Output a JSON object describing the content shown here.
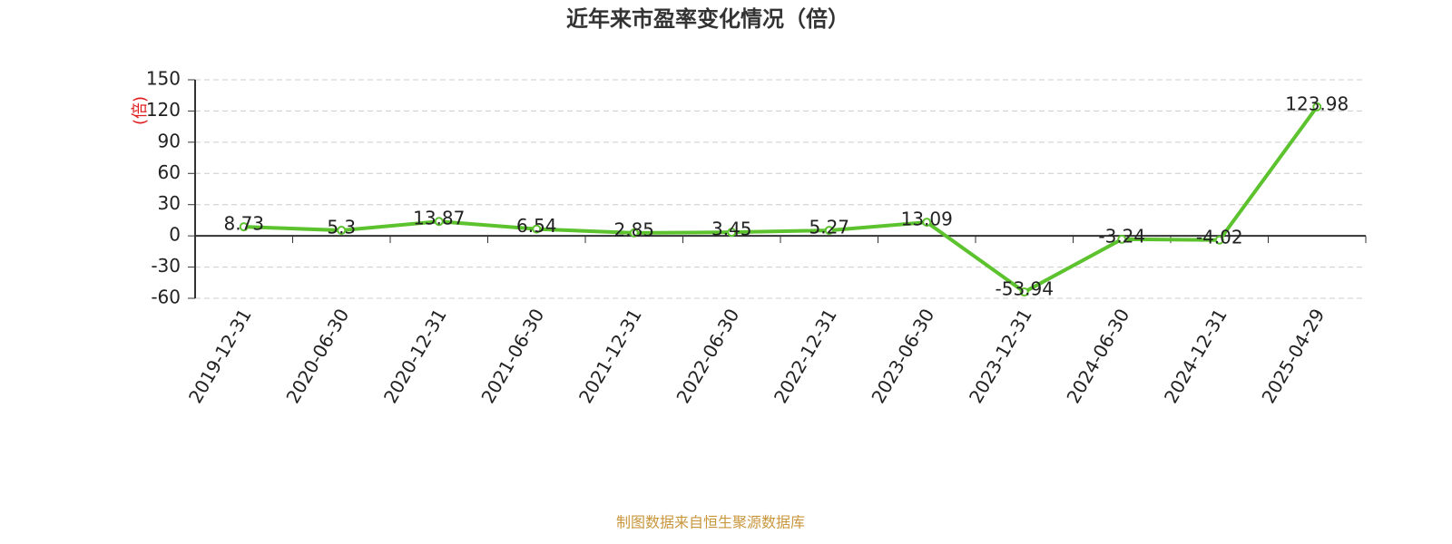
{
  "chart_data": {
    "type": "line",
    "title": "近年来市盈率变化情况（倍）",
    "y_axis_label": "(倍)",
    "source": "制图数据来自恒生聚源数据库",
    "categories": [
      "2019-12-31",
      "2020-06-30",
      "2020-12-31",
      "2021-06-30",
      "2021-12-31",
      "2022-06-30",
      "2022-12-31",
      "2023-06-30",
      "2023-12-31",
      "2024-06-30",
      "2024-12-31",
      "2025-04-29"
    ],
    "values": [
      8.73,
      5.3,
      13.87,
      6.54,
      2.85,
      3.45,
      5.27,
      13.09,
      -53.94,
      -3.24,
      -4.02,
      123.98
    ],
    "color": "#5cc22e",
    "ylim": [
      -60,
      150
    ],
    "yticks": [
      -60,
      -30,
      0,
      30,
      60,
      90,
      120,
      150
    ],
    "grid": true
  }
}
